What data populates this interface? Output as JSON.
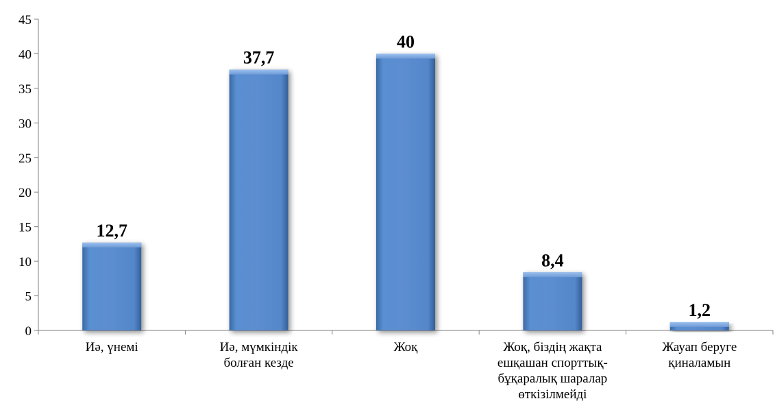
{
  "chart_data": {
    "type": "bar",
    "categories": [
      "Иә, үнемі",
      "Иә, мүмкіндік болған кезде",
      "Жоқ",
      "Жоқ, біздің жақта ешқашан спорттық-бұқаралық шаралар өткізілмейді",
      "Жауап беруге қиналамын"
    ],
    "category_label_lines": [
      [
        "Иә, үнемі"
      ],
      [
        "Иә, мүмкіндік",
        "болған кезде"
      ],
      [
        "Жоқ"
      ],
      [
        "Жоқ, біздің жақта",
        "ешқашан спорттық-",
        "бұқаралық шаралар",
        "өткізілмейді"
      ],
      [
        "Жауап беруге",
        "қиналамын"
      ]
    ],
    "values": [
      12.7,
      37.7,
      40,
      8.4,
      1.2
    ],
    "data_labels": [
      "12,7",
      "37,7",
      "40",
      "8,4",
      "1,2"
    ],
    "ylim": [
      0,
      45
    ],
    "yticks": [
      0,
      5,
      10,
      15,
      20,
      25,
      30,
      35,
      40,
      45
    ],
    "title": "",
    "xlabel": "",
    "ylabel": "",
    "grid": false,
    "bar_color": "#4f81bd",
    "bar_highlight": "#6d9ad8",
    "bar_shadow": "#2c4d75"
  }
}
